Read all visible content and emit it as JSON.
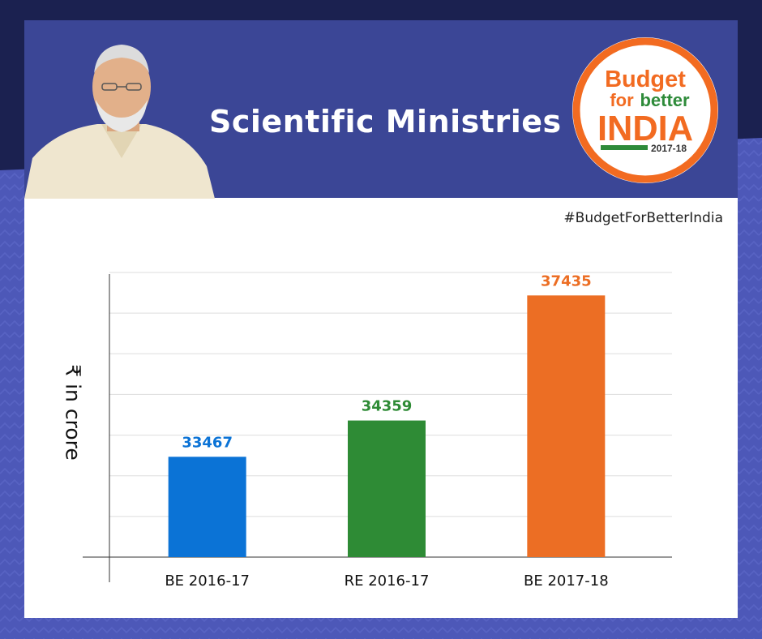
{
  "header": {
    "title": "Scientific Ministries",
    "hashtag": "#BudgetForBetterIndia"
  },
  "logo": {
    "line1": "Budget",
    "line2a": "for",
    "line2b": "better",
    "line3": "INDIA",
    "year": "2017-18",
    "colors": {
      "orange": "#f26b21",
      "green": "#2e8b3a",
      "ring": "#f26b21"
    }
  },
  "chart_data": {
    "type": "bar",
    "categories": [
      "BE 2016-17",
      "RE 2016-17",
      "BE 2017-18"
    ],
    "values": [
      33467,
      34359,
      37435
    ],
    "value_labels": [
      "33467",
      "34359",
      "37435"
    ],
    "colors": [
      "#0b73d6",
      "#2e8b35",
      "#ec6e24"
    ],
    "title": "",
    "ylabel": "₹ in crore",
    "xlabel": "",
    "ylim": [
      31000,
      38000
    ],
    "grid": true
  }
}
